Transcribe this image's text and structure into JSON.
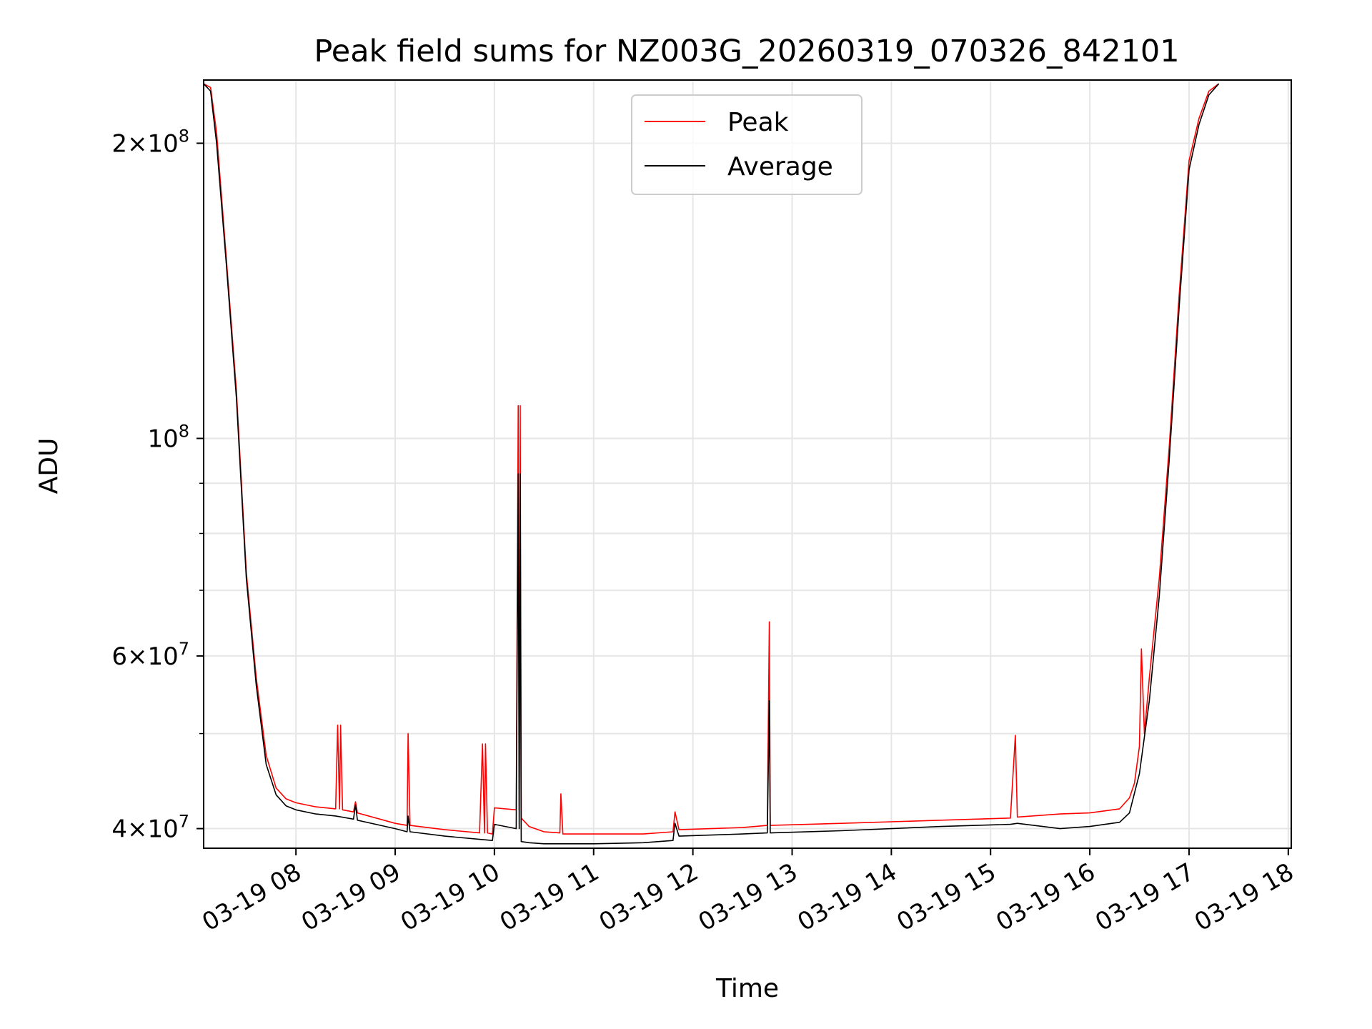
{
  "chart_data": {
    "type": "line",
    "title": "Peak field sums for NZ003G_20260319_070326_842101",
    "xlabel": "Time",
    "ylabel": "ADU",
    "yscale": "log",
    "xlim": [
      7.07,
      18.03
    ],
    "ylim": [
      38200000,
      232000000
    ],
    "grid": true,
    "legend_position": "upper center",
    "x_unit": "hours on 03-19",
    "x_ticks": [
      {
        "value": 8,
        "label": "03-19 08"
      },
      {
        "value": 9,
        "label": "03-19 09"
      },
      {
        "value": 10,
        "label": "03-19 10"
      },
      {
        "value": 11,
        "label": "03-19 11"
      },
      {
        "value": 12,
        "label": "03-19 12"
      },
      {
        "value": 13,
        "label": "03-19 13"
      },
      {
        "value": 14,
        "label": "03-19 14"
      },
      {
        "value": 15,
        "label": "03-19 15"
      },
      {
        "value": 16,
        "label": "03-19 16"
      },
      {
        "value": 17,
        "label": "03-19 17"
      },
      {
        "value": 18,
        "label": "03-19 18"
      }
    ],
    "y_ticks": [
      {
        "value": 40000000,
        "mantissa": "4",
        "exponent": "7"
      },
      {
        "value": 60000000,
        "mantissa": "6",
        "exponent": "7"
      },
      {
        "value": 100000000,
        "mantissa": "",
        "exponent": "8"
      },
      {
        "value": 200000000,
        "mantissa": "2",
        "exponent": "8"
      }
    ],
    "y_minor_ticks": [
      50000000,
      70000000,
      80000000,
      90000000
    ],
    "series": [
      {
        "name": "Peak",
        "color": "#ff0000",
        "points": [
          [
            7.07,
            230000000
          ],
          [
            7.14,
            228000000
          ],
          [
            7.2,
            205000000
          ],
          [
            7.3,
            152000000
          ],
          [
            7.4,
            112000000
          ],
          [
            7.5,
            73000000
          ],
          [
            7.6,
            57000000
          ],
          [
            7.7,
            47500000
          ],
          [
            7.8,
            44000000
          ],
          [
            7.9,
            42900000
          ],
          [
            8.0,
            42500000
          ],
          [
            8.2,
            42100000
          ],
          [
            8.4,
            41900000
          ],
          [
            8.42,
            51000000
          ],
          [
            8.44,
            41900000
          ],
          [
            8.45,
            51000000
          ],
          [
            8.47,
            41800000
          ],
          [
            8.58,
            41600000
          ],
          [
            8.6,
            42600000
          ],
          [
            8.62,
            41500000
          ],
          [
            9.0,
            40500000
          ],
          [
            9.12,
            40300000
          ],
          [
            9.13,
            50000000
          ],
          [
            9.15,
            40300000
          ],
          [
            9.5,
            39900000
          ],
          [
            9.85,
            39600000
          ],
          [
            9.88,
            48800000
          ],
          [
            9.9,
            39600000
          ],
          [
            9.91,
            48800000
          ],
          [
            9.93,
            39600000
          ],
          [
            9.98,
            39500000
          ],
          [
            10.0,
            42000000
          ],
          [
            10.22,
            41800000
          ],
          [
            10.24,
            108000000
          ],
          [
            10.25,
            41800000
          ],
          [
            10.26,
            108000000
          ],
          [
            10.27,
            41000000
          ],
          [
            10.35,
            40200000
          ],
          [
            10.5,
            39700000
          ],
          [
            10.66,
            39600000
          ],
          [
            10.67,
            43400000
          ],
          [
            10.69,
            39500000
          ],
          [
            11.0,
            39500000
          ],
          [
            11.5,
            39500000
          ],
          [
            11.8,
            39700000
          ],
          [
            11.82,
            41600000
          ],
          [
            11.86,
            39900000
          ],
          [
            12.5,
            40100000
          ],
          [
            12.75,
            40300000
          ],
          [
            12.77,
            65000000
          ],
          [
            12.78,
            40300000
          ],
          [
            13.5,
            40500000
          ],
          [
            14.5,
            40800000
          ],
          [
            15.2,
            41000000
          ],
          [
            15.25,
            49800000
          ],
          [
            15.27,
            41100000
          ],
          [
            15.7,
            41400000
          ],
          [
            16.0,
            41500000
          ],
          [
            16.3,
            41900000
          ],
          [
            16.4,
            43000000
          ],
          [
            16.45,
            44500000
          ],
          [
            16.5,
            48500000
          ],
          [
            16.52,
            61000000
          ],
          [
            16.55,
            50000000
          ],
          [
            16.6,
            57000000
          ],
          [
            16.7,
            72000000
          ],
          [
            16.8,
            98000000
          ],
          [
            16.9,
            140000000
          ],
          [
            17.0,
            192000000
          ],
          [
            17.1,
            212000000
          ],
          [
            17.2,
            226000000
          ],
          [
            17.3,
            230000000
          ]
        ]
      },
      {
        "name": "Average",
        "color": "#000000",
        "points": [
          [
            7.07,
            230000000
          ],
          [
            7.14,
            226000000
          ],
          [
            7.2,
            200000000
          ],
          [
            7.3,
            150000000
          ],
          [
            7.4,
            110000000
          ],
          [
            7.5,
            72000000
          ],
          [
            7.6,
            56000000
          ],
          [
            7.7,
            46500000
          ],
          [
            7.8,
            43300000
          ],
          [
            7.9,
            42200000
          ],
          [
            8.0,
            41800000
          ],
          [
            8.2,
            41400000
          ],
          [
            8.4,
            41200000
          ],
          [
            8.58,
            40900000
          ],
          [
            8.6,
            42300000
          ],
          [
            8.62,
            40800000
          ],
          [
            9.0,
            40000000
          ],
          [
            9.12,
            39700000
          ],
          [
            9.13,
            41200000
          ],
          [
            9.15,
            39700000
          ],
          [
            9.5,
            39300000
          ],
          [
            9.85,
            39000000
          ],
          [
            9.98,
            38900000
          ],
          [
            10.0,
            40400000
          ],
          [
            10.22,
            40000000
          ],
          [
            10.24,
            92000000
          ],
          [
            10.25,
            40000000
          ],
          [
            10.26,
            92000000
          ],
          [
            10.27,
            38800000
          ],
          [
            10.35,
            38700000
          ],
          [
            10.5,
            38600000
          ],
          [
            11.0,
            38600000
          ],
          [
            11.5,
            38700000
          ],
          [
            11.8,
            38900000
          ],
          [
            11.82,
            40500000
          ],
          [
            11.86,
            39300000
          ],
          [
            12.5,
            39500000
          ],
          [
            12.75,
            39600000
          ],
          [
            12.77,
            54000000
          ],
          [
            12.78,
            39600000
          ],
          [
            13.5,
            39800000
          ],
          [
            14.5,
            40200000
          ],
          [
            15.2,
            40400000
          ],
          [
            15.27,
            40500000
          ],
          [
            15.7,
            40000000
          ],
          [
            16.0,
            40200000
          ],
          [
            16.3,
            40600000
          ],
          [
            16.4,
            41500000
          ],
          [
            16.5,
            45500000
          ],
          [
            16.6,
            54000000
          ],
          [
            16.7,
            69000000
          ],
          [
            16.8,
            95000000
          ],
          [
            16.9,
            136000000
          ],
          [
            17.0,
            188000000
          ],
          [
            17.1,
            209000000
          ],
          [
            17.2,
            224000000
          ],
          [
            17.3,
            230000000
          ]
        ]
      }
    ]
  }
}
